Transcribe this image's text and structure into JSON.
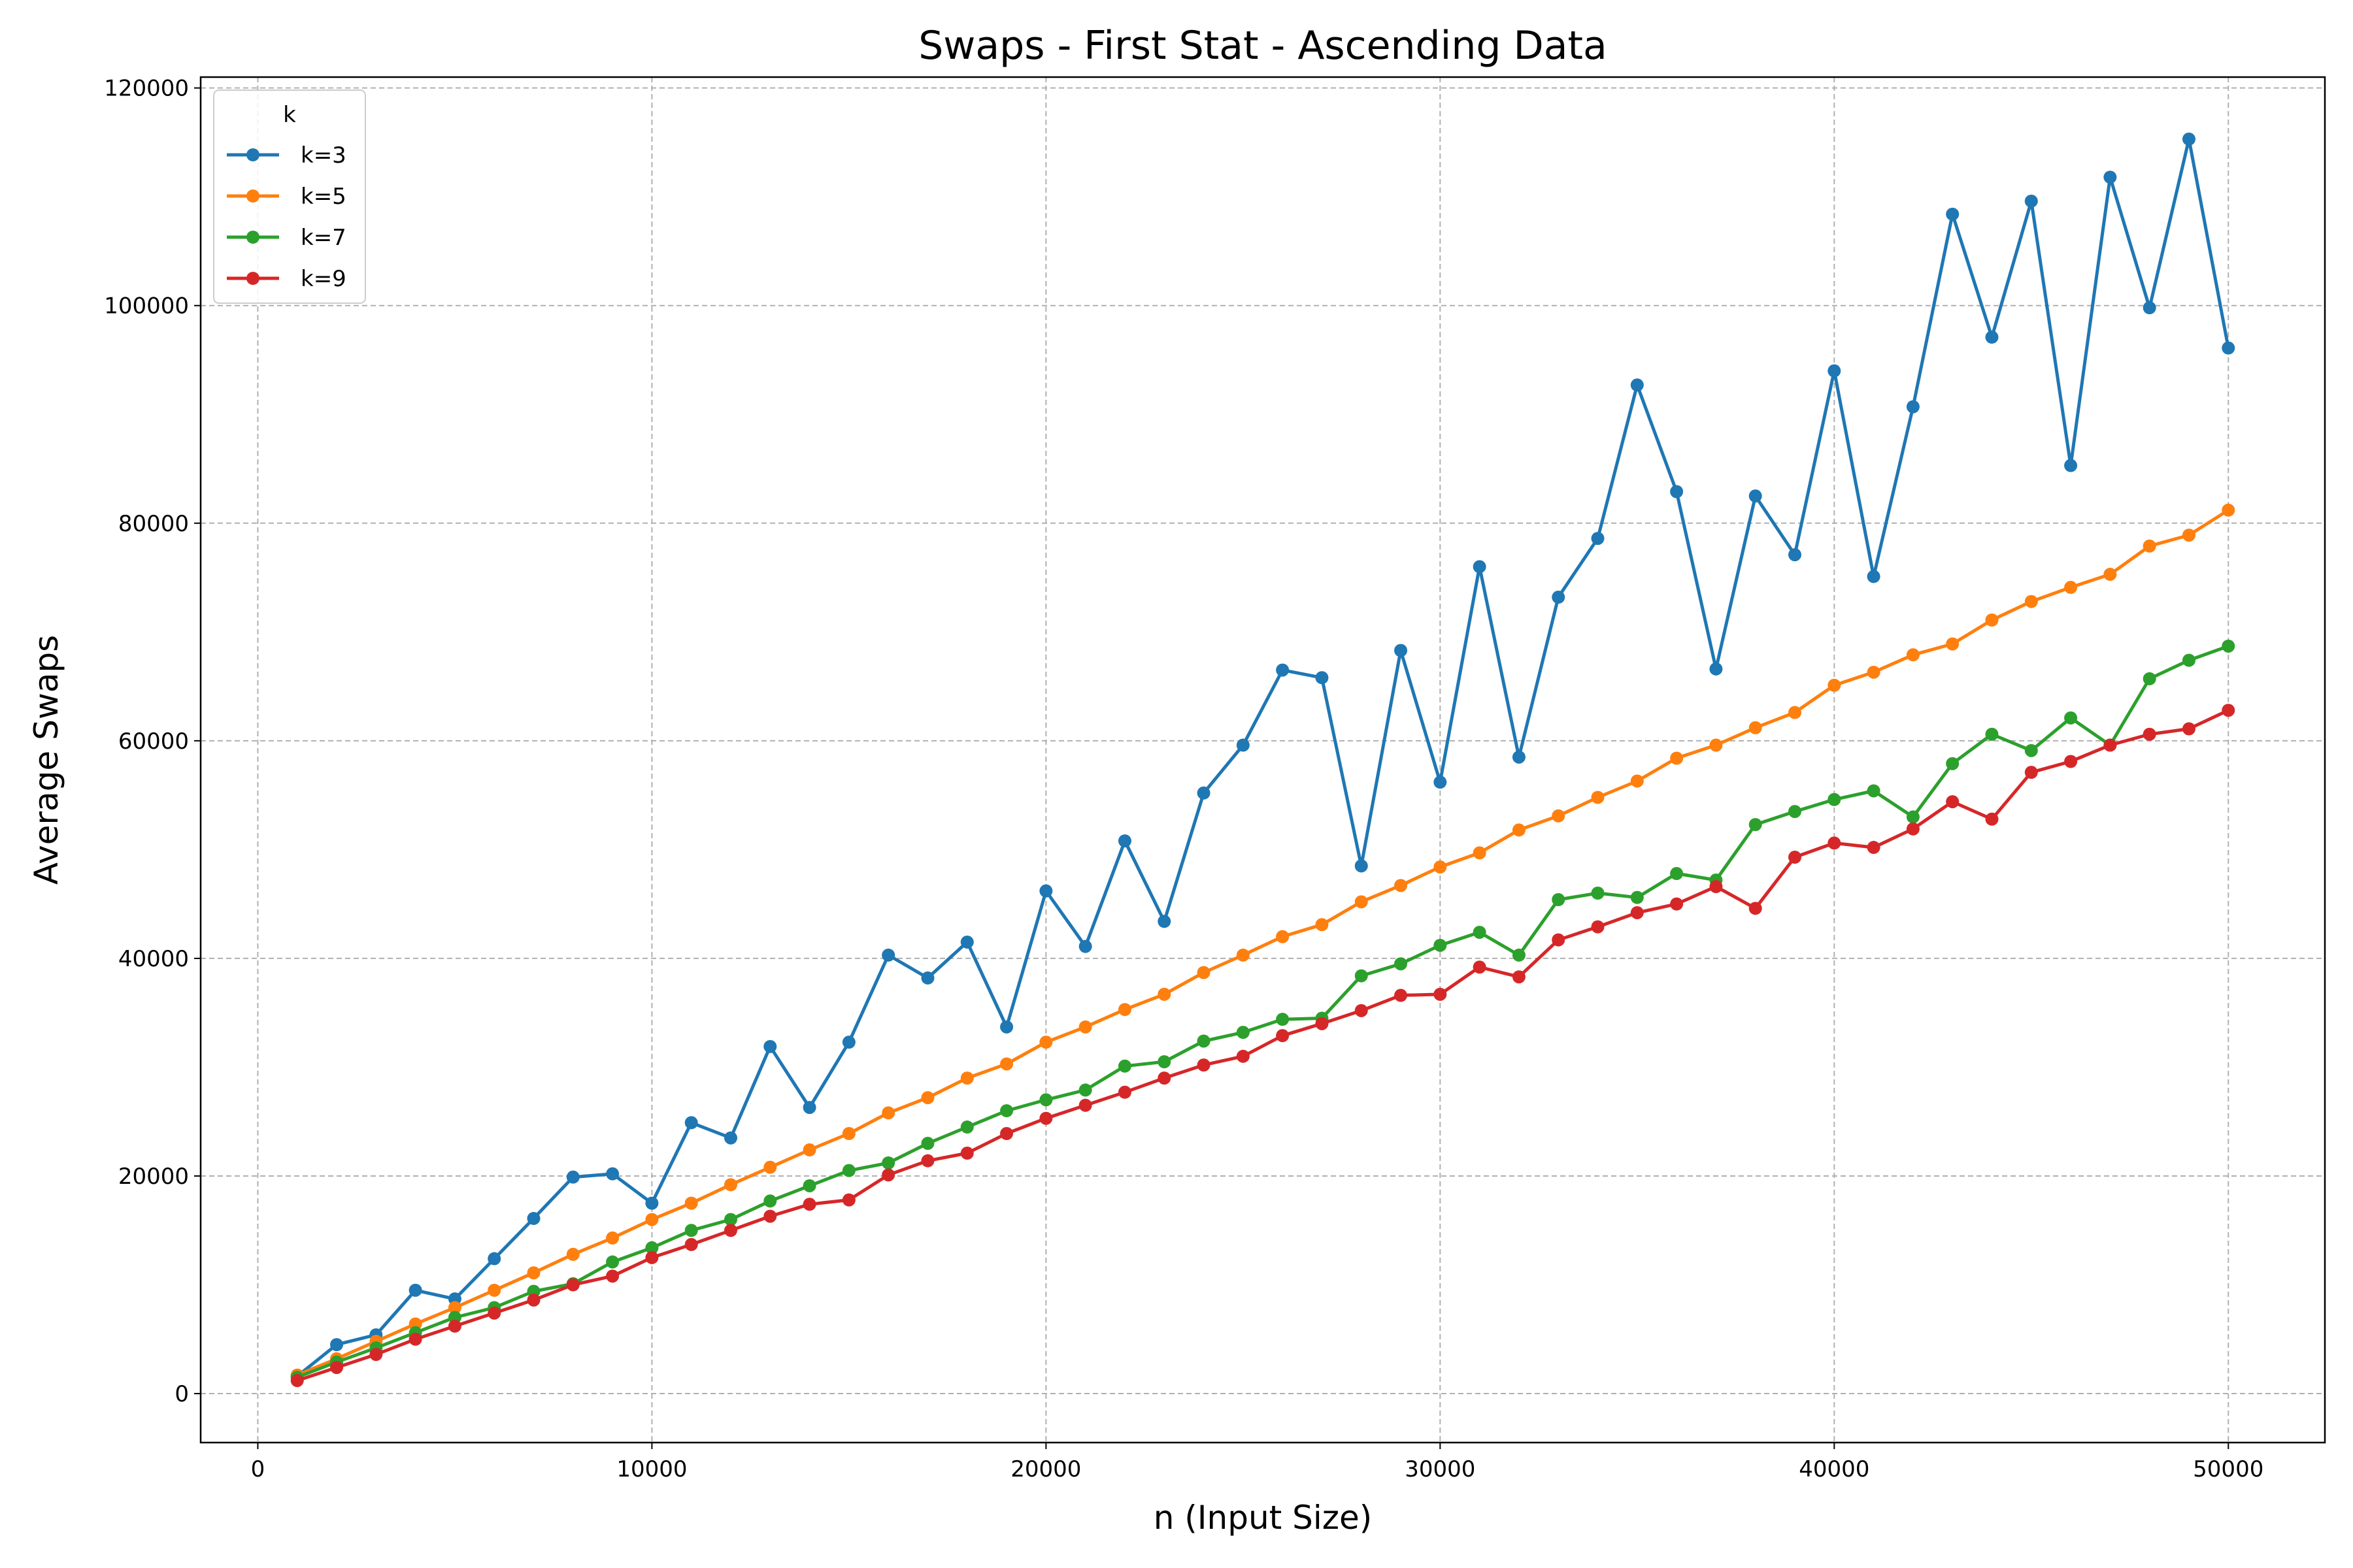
{
  "chart_data": {
    "type": "line",
    "title": "Swaps - First Stat - Ascending Data",
    "xlabel": "n (Input Size)",
    "ylabel": "Average Swaps",
    "xlim": [
      -1450,
      52450
    ],
    "ylim": [
      -4500,
      121000
    ],
    "xticks": [
      0,
      10000,
      20000,
      30000,
      40000,
      50000
    ],
    "yticks": [
      0,
      20000,
      40000,
      60000,
      80000,
      100000,
      120000
    ],
    "grid": true,
    "legend": {
      "title": "k",
      "position": "top-left"
    },
    "x": [
      1000,
      2000,
      3000,
      4000,
      5000,
      6000,
      7000,
      8000,
      9000,
      10000,
      11000,
      12000,
      13000,
      14000,
      15000,
      16000,
      17000,
      18000,
      19000,
      20000,
      21000,
      22000,
      23000,
      24000,
      25000,
      26000,
      27000,
      28000,
      29000,
      30000,
      31000,
      32000,
      33000,
      34000,
      35000,
      36000,
      37000,
      38000,
      39000,
      40000,
      41000,
      42000,
      43000,
      44000,
      45000,
      46000,
      47000,
      48000,
      49000,
      50000
    ],
    "series": [
      {
        "name": "k=3",
        "color": "#1f77b4",
        "values": [
          1600,
          4500,
          5400,
          9500,
          8700,
          12400,
          16100,
          19900,
          20200,
          17500,
          24900,
          23500,
          31900,
          26300,
          32300,
          40300,
          38200,
          41500,
          33700,
          46200,
          41100,
          50800,
          43400,
          55200,
          59600,
          66500,
          65800,
          48500,
          68300,
          56200,
          76000,
          58500,
          73200,
          78600,
          92700,
          82900,
          66600,
          82500,
          77100,
          94000,
          75100,
          90700,
          108400,
          97100,
          109600,
          85300,
          111800,
          99800,
          115300,
          96100
        ]
      },
      {
        "name": "k=5",
        "color": "#ff7f0e",
        "values": [
          1700,
          3200,
          4800,
          6400,
          7900,
          9500,
          11100,
          12800,
          14300,
          16000,
          17500,
          19200,
          20800,
          22400,
          23900,
          25800,
          27200,
          29000,
          30300,
          32300,
          33700,
          35300,
          36700,
          38700,
          40300,
          42000,
          43100,
          45200,
          46700,
          48400,
          49700,
          51800,
          53100,
          54800,
          56300,
          58400,
          59600,
          61200,
          62600,
          65100,
          66300,
          67900,
          68900,
          71100,
          72800,
          74100,
          75300,
          77900,
          78900,
          81200
        ]
      },
      {
        "name": "k=7",
        "color": "#2ca02c",
        "values": [
          1500,
          2900,
          4200,
          5600,
          7000,
          7900,
          9400,
          10100,
          12100,
          13400,
          15000,
          16000,
          17700,
          19100,
          20500,
          21200,
          23000,
          24500,
          26000,
          27000,
          27900,
          30100,
          30500,
          32400,
          33200,
          34400,
          34500,
          38400,
          39500,
          41200,
          42400,
          40300,
          45400,
          46000,
          45600,
          47800,
          47200,
          52300,
          53500,
          54600,
          55400,
          53000,
          57900,
          60600,
          59100,
          62100,
          59600,
          65700,
          67400,
          68700
        ]
      },
      {
        "name": "k=9",
        "color": "#d62728",
        "values": [
          1200,
          2400,
          3600,
          5000,
          6200,
          7400,
          8600,
          10000,
          10800,
          12500,
          13700,
          15000,
          16300,
          17400,
          17800,
          20100,
          21400,
          22100,
          23900,
          25300,
          26500,
          27700,
          29000,
          30200,
          31000,
          32900,
          34000,
          35200,
          36600,
          36700,
          39200,
          38300,
          41700,
          42900,
          44200,
          45000,
          46600,
          44600,
          49300,
          50600,
          50200,
          51900,
          54400,
          52800,
          57100,
          58100,
          59600,
          60600,
          61100,
          62800
        ]
      }
    ]
  }
}
